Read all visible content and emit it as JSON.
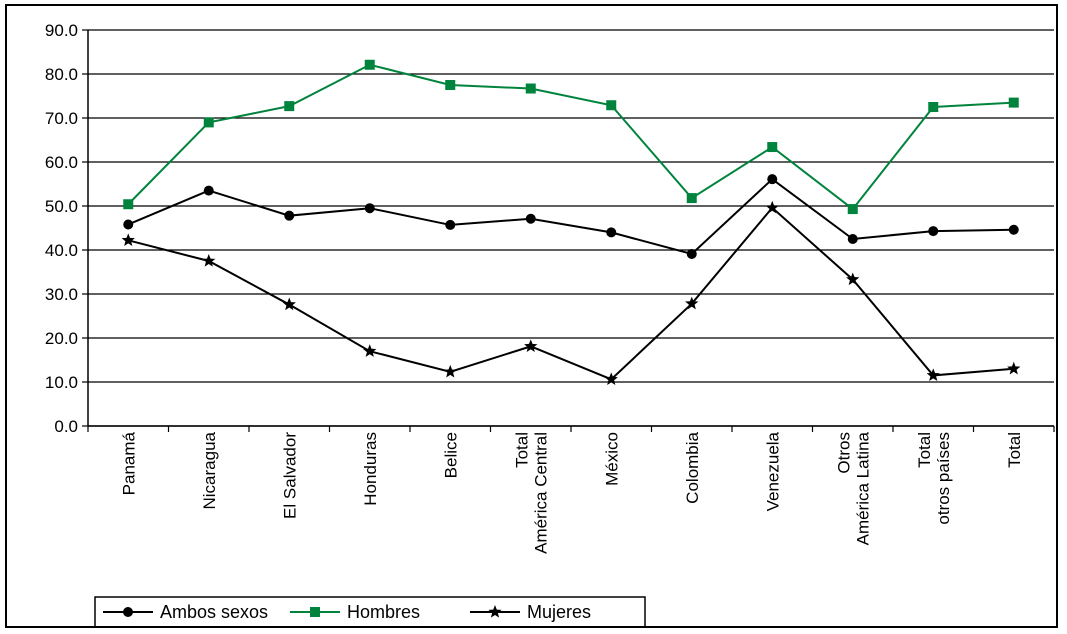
{
  "chart_data": {
    "type": "line",
    "title": "",
    "xlabel": "",
    "ylabel": "",
    "ylim": [
      0,
      90
    ],
    "yticks": [
      "0.0",
      "10.0",
      "20.0",
      "30.0",
      "40.0",
      "50.0",
      "60.0",
      "70.0",
      "80.0",
      "90.0"
    ],
    "grid": true,
    "legend_position": "bottom-left",
    "categories": [
      [
        "Panamá"
      ],
      [
        "Nicaragua"
      ],
      [
        "El Salvador"
      ],
      [
        "Honduras"
      ],
      [
        "Belice"
      ],
      [
        "Total",
        "América Central"
      ],
      [
        "México"
      ],
      [
        "Colombia"
      ],
      [
        "Venezuela"
      ],
      [
        "Otros",
        "América Latina"
      ],
      [
        "Total",
        "otros países"
      ],
      [
        "Total"
      ]
    ],
    "series": [
      {
        "name": "Ambos sexos",
        "marker": "circle",
        "color": "#000000",
        "values": [
          45.8,
          53.5,
          47.8,
          49.5,
          45.7,
          47.1,
          44.0,
          39.1,
          56.1,
          42.5,
          44.3,
          44.6
        ]
      },
      {
        "name": "Hombres",
        "marker": "square",
        "color": "#00843D",
        "values": [
          50.4,
          69.0,
          72.7,
          82.1,
          77.5,
          76.7,
          72.9,
          51.8,
          63.4,
          49.3,
          72.5,
          73.5
        ]
      },
      {
        "name": "Mujeres",
        "marker": "star",
        "color": "#000000",
        "values": [
          42.2,
          37.5,
          27.6,
          17.0,
          12.3,
          18.1,
          10.6,
          27.8,
          49.6,
          33.3,
          11.5,
          13.0
        ]
      }
    ]
  }
}
